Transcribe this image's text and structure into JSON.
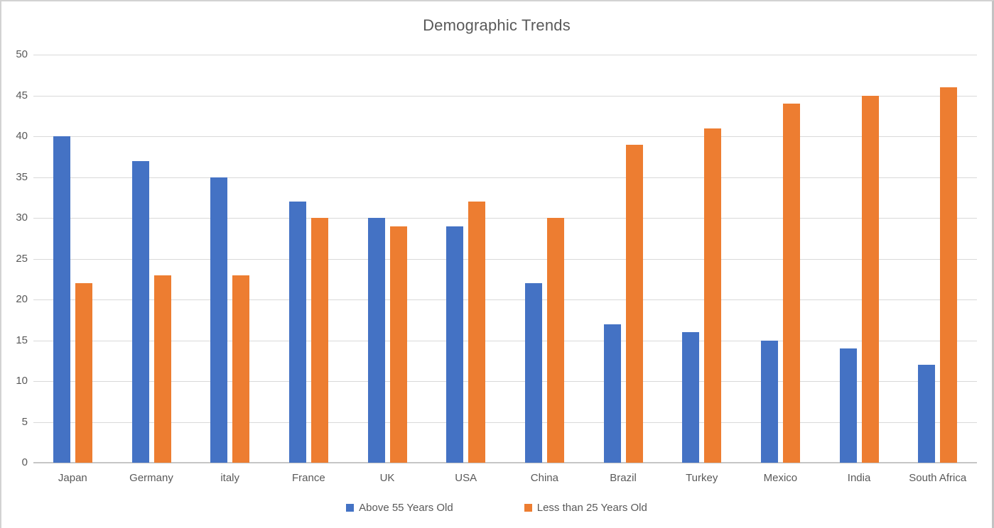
{
  "chart_data": {
    "type": "bar",
    "title": "Demographic Trends",
    "categories": [
      "Japan",
      "Germany",
      "italy",
      "France",
      "UK",
      "USA",
      "China",
      "Brazil",
      "Turkey",
      "Mexico",
      "India",
      "South Africa"
    ],
    "series": [
      {
        "name": "Above 55 Years Old",
        "color": "#4472C4",
        "values": [
          40,
          37,
          35,
          32,
          30,
          29,
          22,
          17,
          16,
          15,
          14,
          12
        ]
      },
      {
        "name": "Less than 25 Years Old",
        "color": "#ED7D31",
        "values": [
          22,
          23,
          23,
          30,
          29,
          32,
          30,
          39,
          41,
          44,
          45,
          46
        ]
      }
    ],
    "xlabel": "",
    "ylabel": "",
    "ylim": [
      0,
      50
    ],
    "yticks": [
      0,
      5,
      10,
      15,
      20,
      25,
      30,
      35,
      40,
      45,
      50
    ],
    "grid": "horizontal",
    "legend_position": "bottom"
  },
  "colors": {
    "background": "#FFFFFF",
    "frame_border": "#D2D2D2",
    "gridline": "#D9D9D9",
    "axis_line": "#C6C6C6",
    "text": "#595959",
    "series_blue": "#4472C4",
    "series_orange": "#ED7D31"
  }
}
